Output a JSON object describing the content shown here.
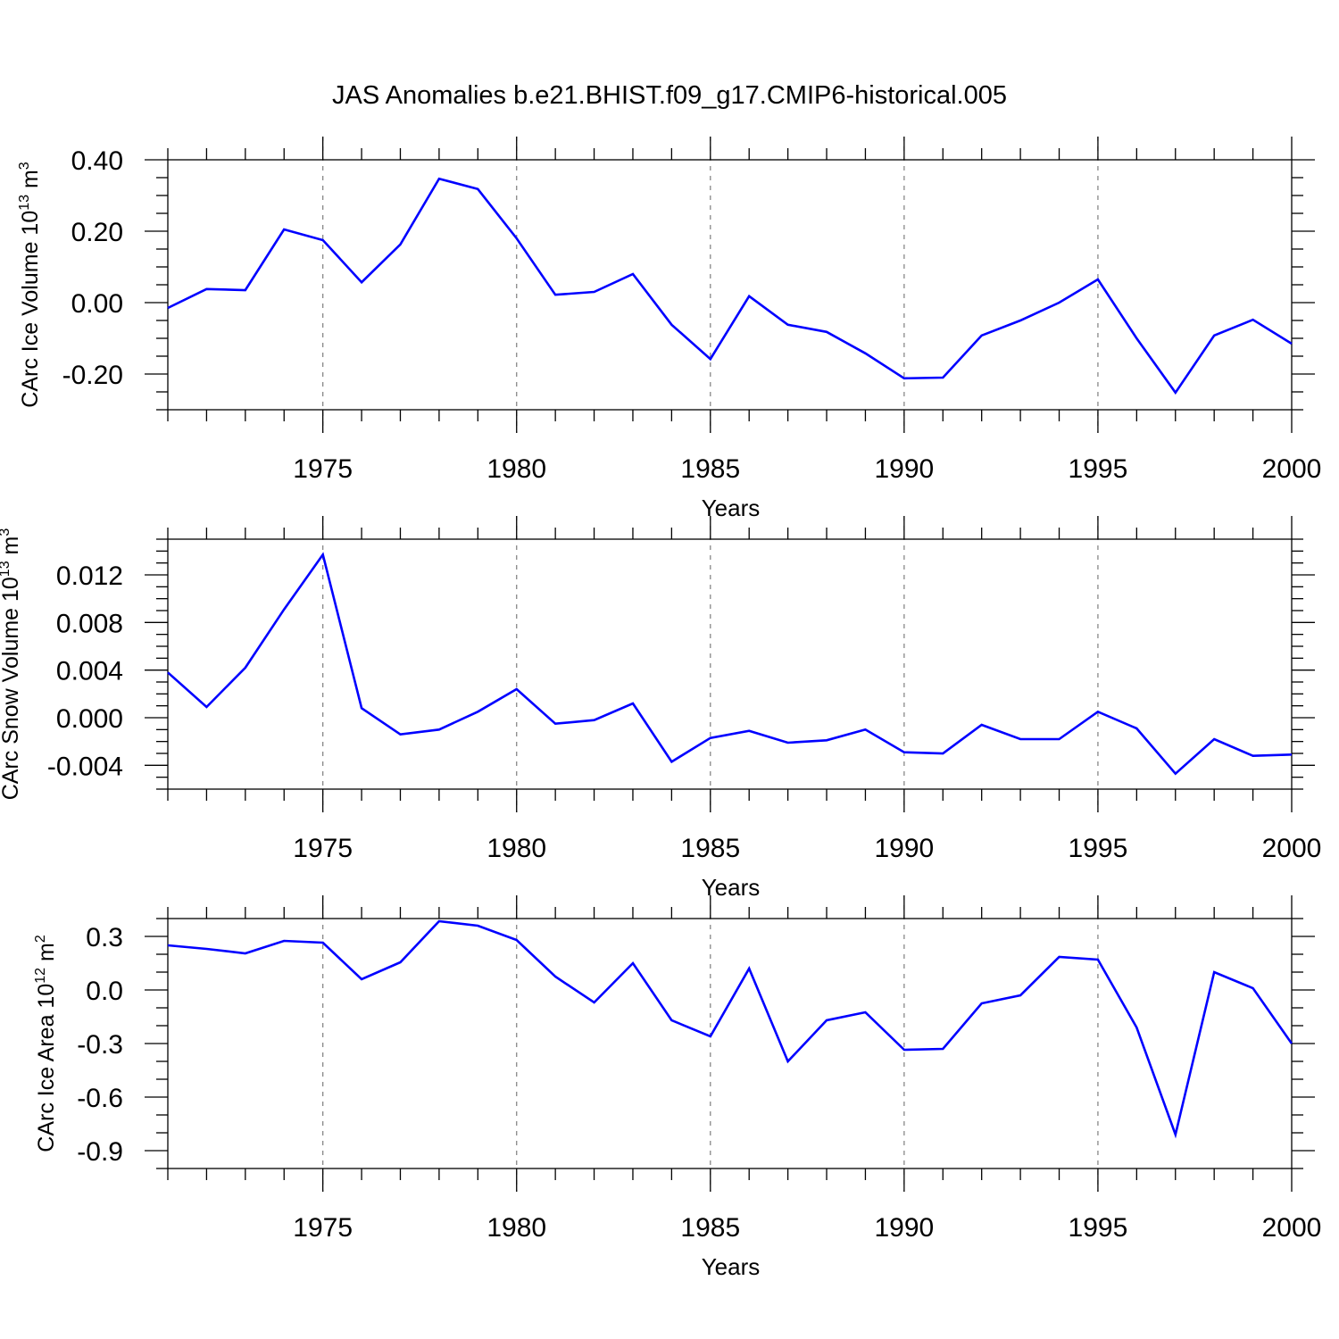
{
  "title": "JAS Anomalies b.e21.BHIST.f09_g17.CMIP6-historical.005",
  "line_color": "#0000ff",
  "grid_color": "#888888",
  "chart_data": [
    {
      "type": "line",
      "ylabel": {
        "text": "CArc Ice Volume 10",
        "exponent": "13",
        "unit": "m",
        "unit_exponent": "3"
      },
      "xlabel": "Years",
      "xlim": [
        1971,
        2000
      ],
      "ylim": [
        -0.3,
        0.4
      ],
      "yticks": [
        0.4,
        0.2,
        0.0,
        -0.2
      ],
      "ytick_labels": [
        "0.40",
        "0.20",
        "0.00",
        "-0.20"
      ],
      "y_minor_step": 0.05,
      "xticks": [
        1975,
        1980,
        1985,
        1990,
        1995,
        2000
      ],
      "xtick_labels": [
        "1975",
        "1980",
        "1985",
        "1990",
        "1995",
        "2000"
      ],
      "grid": "vertical-dashed",
      "x": [
        1971,
        1972,
        1973,
        1974,
        1975,
        1976,
        1977,
        1978,
        1979,
        1980,
        1981,
        1982,
        1983,
        1984,
        1985,
        1986,
        1987,
        1988,
        1989,
        1990,
        1991,
        1992,
        1993,
        1994,
        1995,
        1996,
        1997,
        1998,
        1999,
        2000
      ],
      "values": [
        -0.015,
        0.038,
        0.035,
        0.205,
        0.175,
        0.057,
        0.163,
        0.347,
        0.318,
        0.18,
        0.022,
        0.03,
        0.08,
        -0.062,
        -0.158,
        0.018,
        -0.062,
        -0.082,
        -0.142,
        -0.212,
        -0.21,
        -0.092,
        -0.05,
        0.0,
        0.065,
        -0.1,
        -0.252,
        -0.092,
        -0.048,
        -0.115
      ]
    },
    {
      "type": "line",
      "ylabel": {
        "text": "CArc Snow Volume 10",
        "exponent": "13",
        "unit": "m",
        "unit_exponent": "3"
      },
      "xlabel": "Years",
      "xlim": [
        1971,
        2000
      ],
      "ylim": [
        -0.006,
        0.015
      ],
      "yticks": [
        0.012,
        0.008,
        0.004,
        0.0,
        -0.004
      ],
      "ytick_labels": [
        "0.012",
        "0.008",
        "0.004",
        "0.000",
        "-0.004"
      ],
      "y_minor_step": 0.001,
      "xticks": [
        1975,
        1980,
        1985,
        1990,
        1995,
        2000
      ],
      "xtick_labels": [
        "1975",
        "1980",
        "1985",
        "1990",
        "1995",
        "2000"
      ],
      "grid": "vertical-dashed",
      "x": [
        1971,
        1972,
        1973,
        1974,
        1975,
        1976,
        1977,
        1978,
        1979,
        1980,
        1981,
        1982,
        1983,
        1984,
        1985,
        1986,
        1987,
        1988,
        1989,
        1990,
        1991,
        1992,
        1993,
        1994,
        1995,
        1996,
        1997,
        1998,
        1999,
        2000
      ],
      "values": [
        0.0038,
        0.0009,
        0.0042,
        0.0091,
        0.0137,
        0.0008,
        -0.0014,
        -0.001,
        0.0005,
        0.0024,
        -0.0005,
        -0.0002,
        0.0012,
        -0.0037,
        -0.0017,
        -0.0011,
        -0.0021,
        -0.0019,
        -0.001,
        -0.0029,
        -0.003,
        -0.0006,
        -0.0018,
        -0.0018,
        0.0005,
        -0.0009,
        -0.0047,
        -0.0018,
        -0.0032,
        -0.0031
      ]
    },
    {
      "type": "line",
      "ylabel": {
        "text": "CArc Ice Area 10",
        "exponent": "12",
        "unit": "m",
        "unit_exponent": "2"
      },
      "xlabel": "Years",
      "xlim": [
        1971,
        2000
      ],
      "ylim": [
        -1.0,
        0.4
      ],
      "yticks": [
        0.3,
        0.0,
        -0.3,
        -0.6,
        -0.9
      ],
      "ytick_labels": [
        "0.3",
        "0.0",
        "-0.3",
        "-0.6",
        "-0.9"
      ],
      "y_minor_step": 0.1,
      "xticks": [
        1975,
        1980,
        1985,
        1990,
        1995,
        2000
      ],
      "xtick_labels": [
        "1975",
        "1980",
        "1985",
        "1990",
        "1995",
        "2000"
      ],
      "grid": "vertical-dashed",
      "x": [
        1971,
        1972,
        1973,
        1974,
        1975,
        1976,
        1977,
        1978,
        1979,
        1980,
        1981,
        1982,
        1983,
        1984,
        1985,
        1986,
        1987,
        1988,
        1989,
        1990,
        1991,
        1992,
        1993,
        1994,
        1995,
        1996,
        1997,
        1998,
        1999,
        2000
      ],
      "values": [
        0.25,
        0.23,
        0.205,
        0.275,
        0.265,
        0.06,
        0.155,
        0.385,
        0.36,
        0.28,
        0.075,
        -0.07,
        0.15,
        -0.17,
        -0.26,
        0.12,
        -0.4,
        -0.17,
        -0.125,
        -0.335,
        -0.33,
        -0.075,
        -0.03,
        0.185,
        0.17,
        -0.21,
        -0.81,
        0.1,
        0.01,
        -0.3
      ]
    }
  ]
}
